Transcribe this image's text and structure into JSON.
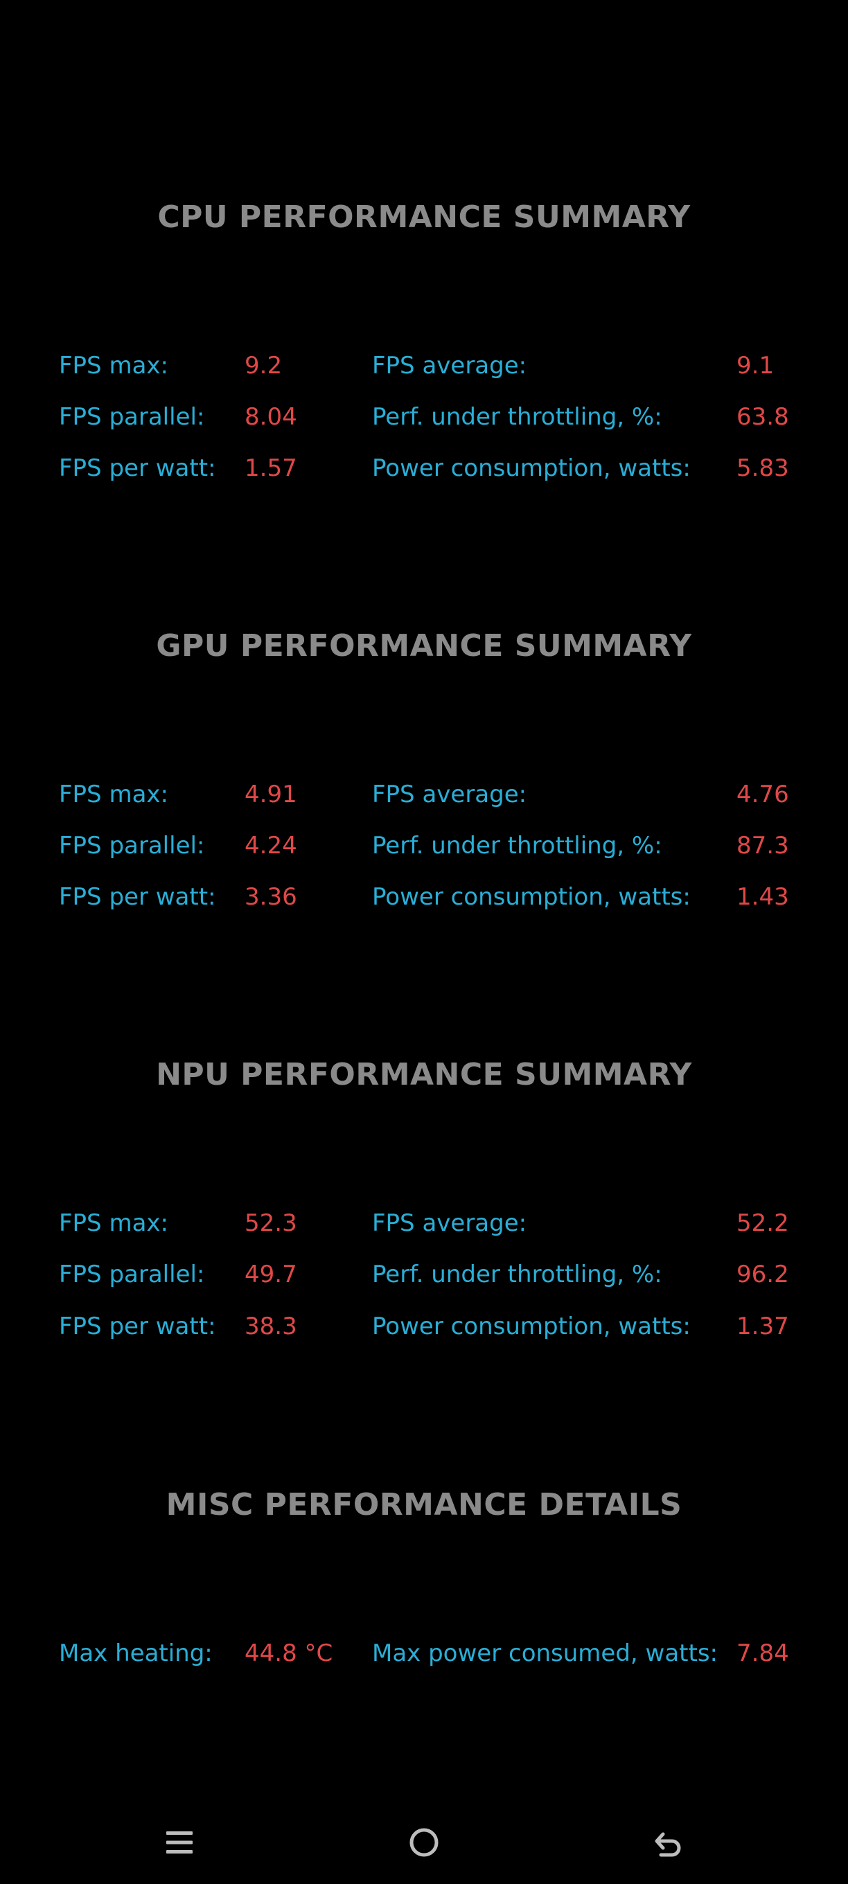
{
  "cpu": {
    "title": "CPU PERFORMANCE SUMMARY",
    "fps_max_label": "FPS max:",
    "fps_max": "9.2",
    "fps_average_label": "FPS average:",
    "fps_average": "9.1",
    "fps_parallel_label": "FPS parallel:",
    "fps_parallel": "8.04",
    "perf_throttling_label": "Perf. under throttling, %:",
    "perf_throttling": "63.8",
    "fps_per_watt_label": "FPS per watt:",
    "fps_per_watt": "1.57",
    "power_label": "Power consumption, watts:",
    "power": "5.83"
  },
  "gpu": {
    "title": "GPU PERFORMANCE SUMMARY",
    "fps_max_label": "FPS max:",
    "fps_max": "4.91",
    "fps_average_label": "FPS average:",
    "fps_average": "4.76",
    "fps_parallel_label": "FPS parallel:",
    "fps_parallel": "4.24",
    "perf_throttling_label": "Perf. under throttling, %:",
    "perf_throttling": "87.3",
    "fps_per_watt_label": "FPS per watt:",
    "fps_per_watt": "3.36",
    "power_label": "Power consumption, watts:",
    "power": "1.43"
  },
  "npu": {
    "title": "NPU PERFORMANCE SUMMARY",
    "fps_max_label": "FPS max:",
    "fps_max": "52.3",
    "fps_average_label": "FPS average:",
    "fps_average": "52.2",
    "fps_parallel_label": "FPS parallel:",
    "fps_parallel": "49.7",
    "perf_throttling_label": "Perf. under throttling, %:",
    "perf_throttling": "96.2",
    "fps_per_watt_label": "FPS per watt:",
    "fps_per_watt": "38.3",
    "power_label": "Power consumption, watts:",
    "power": "1.37"
  },
  "misc": {
    "title": "MISC PERFORMANCE DETAILS",
    "max_heating_label": "Max heating:",
    "max_heating": "44.8 °C",
    "max_power_label": "Max power consumed, watts:",
    "max_power": "7.84"
  },
  "colors": {
    "background": "#000000",
    "title": "#8a8a8a",
    "label": "#2aaed6",
    "value": "#e04848",
    "nav_icon": "#bdbdbd"
  },
  "navbar": {
    "menu_icon": "menu-icon",
    "home_icon": "home-icon",
    "back_icon": "back-icon"
  }
}
